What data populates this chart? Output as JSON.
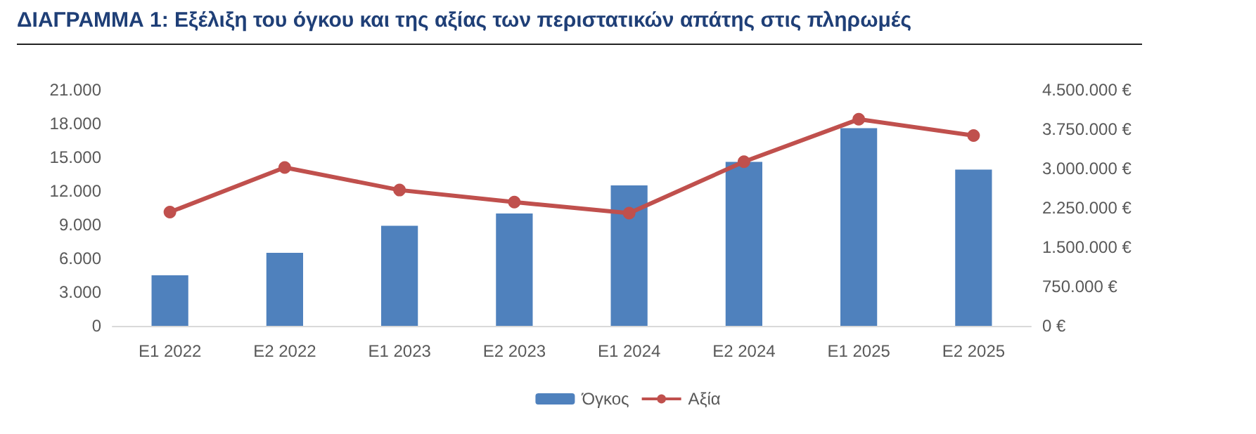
{
  "chart_data": {
    "type": "bar",
    "title": "ΔΙΑΓΡΑΜΜΑ 1: Εξέλιξη του όγκου και της αξίας των περιστατικών απάτης στις πληρωμές",
    "categories": [
      "E1 2022",
      "E2 2022",
      "E1 2023",
      "E2 2023",
      "E1 2024",
      "E2 2024",
      "E1 2025",
      "E2 2025"
    ],
    "series": [
      {
        "name": "Όγκος",
        "color": "#4f81bd",
        "values": [
          4500,
          6500,
          8900,
          10000,
          12500,
          14600,
          17600,
          13900
        ]
      },
      {
        "name": "Αξία",
        "type": "line",
        "axis": "y2",
        "color": "#c0504d",
        "marker": "circle",
        "values": [
          2170000,
          3020000,
          2590000,
          2360000,
          2150000,
          3130000,
          3940000,
          3630000
        ]
      }
    ],
    "ylim": [
      0,
      21000
    ],
    "yticks": [
      {
        "value": 0,
        "label": "0"
      },
      {
        "value": 3000,
        "label": "3.000"
      },
      {
        "value": 6000,
        "label": "6.000"
      },
      {
        "value": 9000,
        "label": "9.000"
      },
      {
        "value": 12000,
        "label": "12.000"
      },
      {
        "value": 15000,
        "label": "15.000"
      },
      {
        "value": 18000,
        "label": "18.000"
      },
      {
        "value": 21000,
        "label": "21.000"
      }
    ],
    "y2lim": [
      0,
      4500000
    ],
    "y2ticks": [
      {
        "value": 0,
        "label": "0 €"
      },
      {
        "value": 750000,
        "label": "750.000 €"
      },
      {
        "value": 1500000,
        "label": "1.500.000 €"
      },
      {
        "value": 2250000,
        "label": "2.250.000 €"
      },
      {
        "value": 3000000,
        "label": "3.000.000 €"
      },
      {
        "value": 3750000,
        "label": "3.750.000 €"
      },
      {
        "value": 4500000,
        "label": "4.500.000 €"
      }
    ],
    "grid": false,
    "legend": "bottom"
  }
}
